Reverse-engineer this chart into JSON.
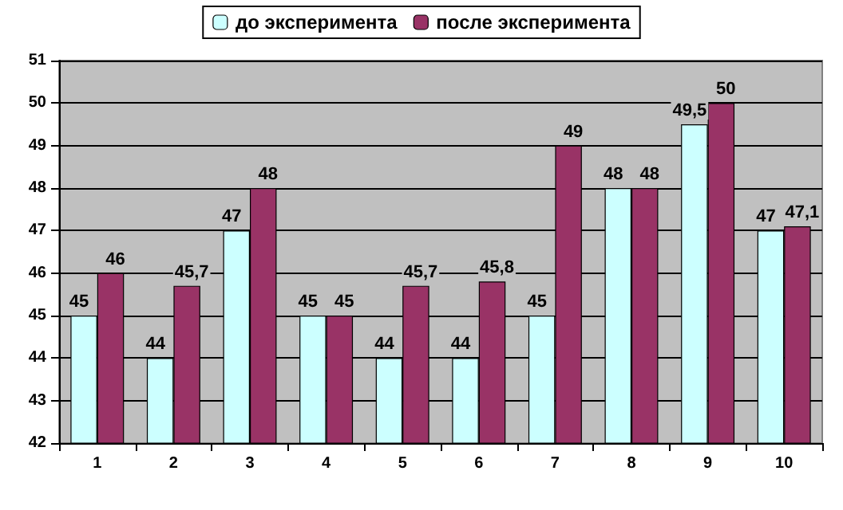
{
  "chart_data": {
    "type": "bar",
    "categories": [
      "1",
      "2",
      "3",
      "4",
      "5",
      "6",
      "7",
      "8",
      "9",
      "10"
    ],
    "series": [
      {
        "name": "до эксперимента",
        "color": "#ccffff",
        "values": [
          45,
          44,
          47,
          45,
          44,
          44,
          45,
          48,
          49.5,
          47
        ],
        "value_labels": [
          "45",
          "44",
          "47",
          "45",
          "44",
          "44",
          "45",
          "48",
          "49,5",
          "47"
        ]
      },
      {
        "name": "после эксперимента",
        "color": "#993366",
        "values": [
          46,
          45.7,
          48,
          45,
          45.7,
          45.8,
          49,
          48,
          50,
          47.1
        ],
        "value_labels": [
          "46",
          "45,7",
          "48",
          "45",
          "45,7",
          "45,8",
          "49",
          "48",
          "50",
          "47,1"
        ]
      }
    ],
    "ylim": [
      42,
      51
    ],
    "yticks": [
      42,
      43,
      44,
      45,
      46,
      47,
      48,
      49,
      50,
      51
    ],
    "grid": "y",
    "legend": "top"
  }
}
